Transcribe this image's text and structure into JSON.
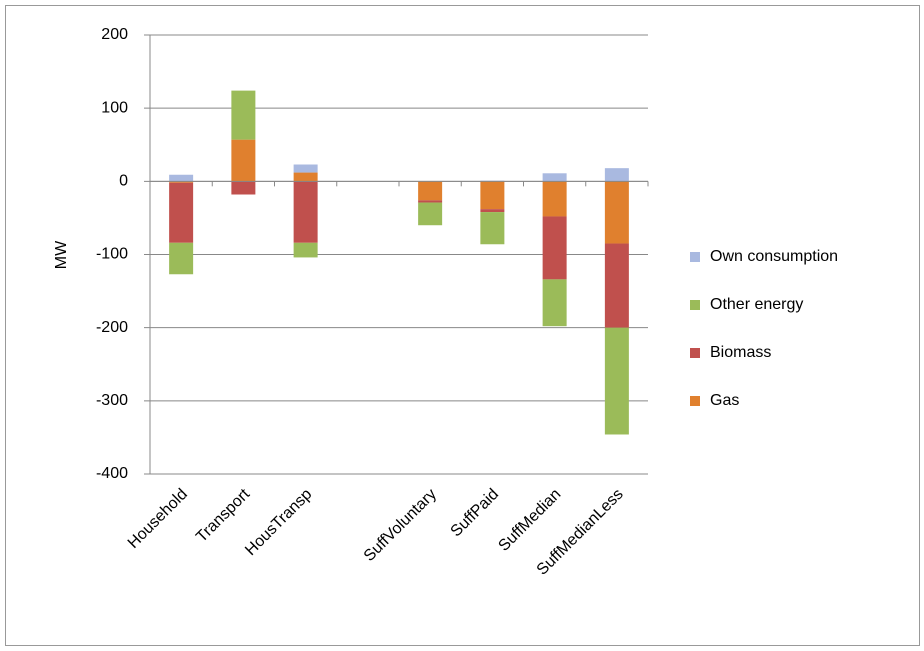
{
  "chart_data": {
    "type": "stacked_bar",
    "y_label": "MW",
    "categories": [
      "Household",
      "Transport",
      "HousTransp",
      null,
      "SuffVoluntary",
      "SuffPaid",
      "SuffMedian",
      "SuffMedianLess"
    ],
    "series": [
      {
        "name": "Gas",
        "color": "#e0802e",
        "values": [
          -2,
          57,
          12,
          null,
          -26,
          -38,
          -48,
          -85
        ]
      },
      {
        "name": "Biomass",
        "color": "#c0504d",
        "values": [
          -82,
          -18,
          -84,
          null,
          -3,
          -4,
          -86,
          -115
        ]
      },
      {
        "name": "Other energy",
        "color": "#9bbb59",
        "values": [
          -43,
          67,
          -20,
          null,
          -31,
          -44,
          -64,
          -146
        ]
      },
      {
        "name": "Own consumption",
        "color": "#a9b9e0",
        "values": [
          9,
          0,
          11,
          null,
          0,
          1,
          11,
          18
        ]
      }
    ],
    "ylim": [
      -400,
      200
    ],
    "yticks": [
      -400,
      -300,
      -200,
      -100,
      0,
      100,
      200
    ],
    "grid": true,
    "legend_position": "right"
  }
}
